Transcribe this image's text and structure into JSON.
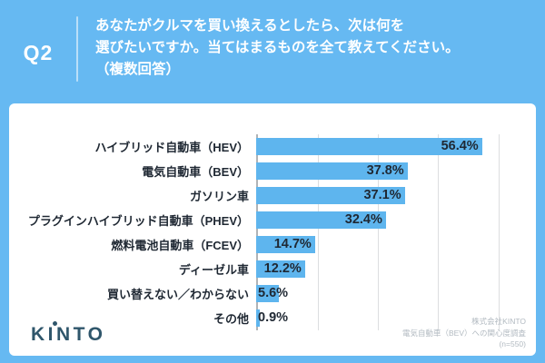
{
  "header": {
    "q_label": "Q2",
    "question_lines": [
      "あなたがクルマを買い換えるとしたら、次は何を",
      "選びたいですか。当てはまるものを全て教えてください。",
      "（複数回答）"
    ]
  },
  "chart_data": {
    "type": "bar",
    "orientation": "horizontal",
    "title": "",
    "xlabel": "",
    "ylabel": "",
    "categories": [
      "ハイブリッド自動車（HEV）",
      "電気自動車（BEV）",
      "ガソリン車",
      "プラグインハイブリッド自動車（PHEV）",
      "燃料電池自動車（FCEV）",
      "ディーゼル車",
      "買い替えない／わからない",
      "その他"
    ],
    "values": [
      56.4,
      37.8,
      37.1,
      32.4,
      14.7,
      12.2,
      5.6,
      0.9
    ],
    "value_labels": [
      "56.4%",
      "37.8%",
      "37.1%",
      "32.4%",
      "14.7%",
      "12.2%",
      "5.6%",
      "0.9%"
    ],
    "unit": "%",
    "xlim": [
      0,
      63.5
    ],
    "gridlines": [
      15,
      30,
      45,
      60
    ],
    "grid": true,
    "legend": false,
    "bar_color": "#5eb5ee",
    "label_color": "#1f2833"
  },
  "footer": {
    "logo_text": "KINTO",
    "credit_lines": [
      "株式会社KINTO",
      "電気自動車（BEV）への関心度調査",
      "(n=550)"
    ]
  },
  "colors": {
    "background": "#66b9f2",
    "card": "#ffffff",
    "header_text": "#ffffff",
    "axis": "#b0b3b6",
    "gridline": "#dcdee0",
    "logo": "#2f566b",
    "credit_text": "#b2bac1"
  }
}
